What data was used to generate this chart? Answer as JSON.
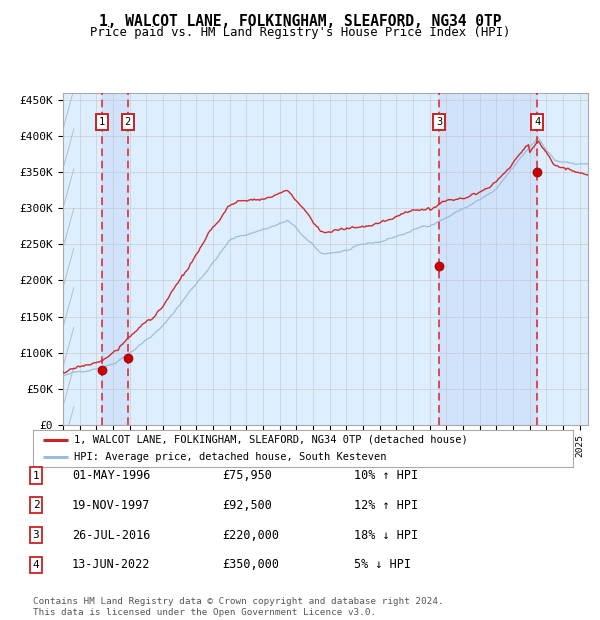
{
  "title": "1, WALCOT LANE, FOLKINGHAM, SLEAFORD, NG34 0TP",
  "subtitle": "Price paid vs. HM Land Registry's House Price Index (HPI)",
  "ylim": [
    0,
    460000
  ],
  "yticks": [
    0,
    50000,
    100000,
    150000,
    200000,
    250000,
    300000,
    350000,
    400000,
    450000
  ],
  "ytick_labels": [
    "£0",
    "£50K",
    "£100K",
    "£150K",
    "£200K",
    "£250K",
    "£300K",
    "£350K",
    "£400K",
    "£450K"
  ],
  "xlim_start": 1994.0,
  "xlim_end": 2025.5,
  "sale_dates": [
    1996.33,
    1997.89,
    2016.56,
    2022.45
  ],
  "sale_prices": [
    75950,
    92500,
    220000,
    350000
  ],
  "purchase_labels": [
    "1",
    "2",
    "3",
    "4"
  ],
  "dot_color": "#cc0000",
  "red_line_color": "#cc2222",
  "blue_line_color": "#99bbdd",
  "grid_color": "#cccccc",
  "bg_color": "#ffffff",
  "chart_bg": "#ddeeff",
  "legend_line1": "1, WALCOT LANE, FOLKINGHAM, SLEAFORD, NG34 0TP (detached house)",
  "legend_line2": "HPI: Average price, detached house, South Kesteven",
  "table_data": [
    [
      "1",
      "01-MAY-1996",
      "£75,950",
      "10% ↑ HPI"
    ],
    [
      "2",
      "19-NOV-1997",
      "£92,500",
      "12% ↑ HPI"
    ],
    [
      "3",
      "26-JUL-2016",
      "£220,000",
      "18% ↓ HPI"
    ],
    [
      "4",
      "13-JUN-2022",
      "£350,000",
      "5% ↓ HPI"
    ]
  ],
  "footer": "Contains HM Land Registry data © Crown copyright and database right 2024.\nThis data is licensed under the Open Government Licence v3.0."
}
